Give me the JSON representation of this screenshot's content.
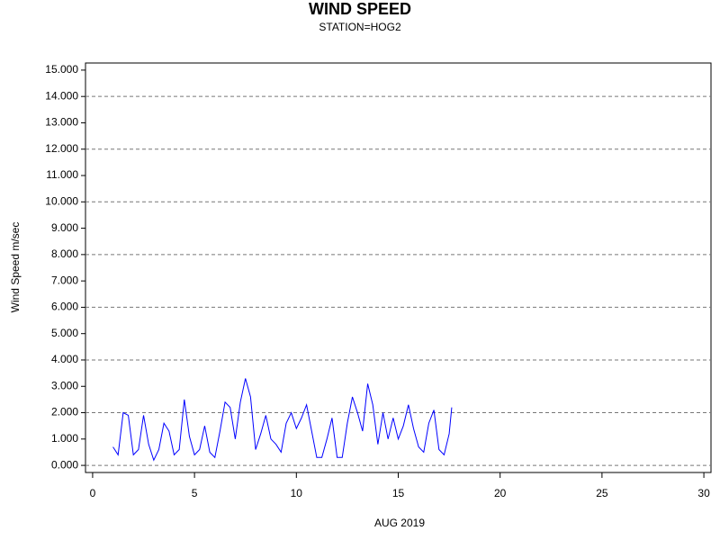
{
  "chart_data": {
    "type": "line",
    "title": "WIND SPEED",
    "subtitle": "STATION=HOG2",
    "x_label": "AUG 2019",
    "y_label": "Wind Speed m/sec",
    "x": [
      1.0,
      1.25,
      1.5,
      1.75,
      2.0,
      2.25,
      2.5,
      2.75,
      3.0,
      3.25,
      3.5,
      3.75,
      4.0,
      4.25,
      4.5,
      4.75,
      5.0,
      5.25,
      5.5,
      5.75,
      6.0,
      6.25,
      6.5,
      6.75,
      7.0,
      7.25,
      7.5,
      7.75,
      8.0,
      8.25,
      8.5,
      8.75,
      9.0,
      9.25,
      9.5,
      9.75,
      10.0,
      10.25,
      10.5,
      10.75,
      11.0,
      11.25,
      11.5,
      11.75,
      12.0,
      12.25,
      12.5,
      12.75,
      13.0,
      13.25,
      13.5,
      13.75,
      14.0,
      14.25,
      14.5,
      14.75,
      15.0,
      15.25,
      15.5,
      15.75,
      16.0,
      16.25,
      16.5,
      16.75,
      17.0,
      17.25,
      17.5,
      17.625
    ],
    "series": [
      {
        "name": "Wind Speed",
        "color": "#0000ff",
        "values": [
          0.7,
          0.4,
          2.0,
          1.9,
          0.4,
          0.6,
          1.9,
          0.8,
          0.2,
          0.6,
          1.6,
          1.3,
          0.4,
          0.6,
          2.5,
          1.1,
          0.4,
          0.6,
          1.5,
          0.5,
          0.3,
          1.3,
          2.4,
          2.2,
          1.0,
          2.4,
          3.3,
          2.6,
          0.6,
          1.2,
          1.9,
          1.0,
          0.8,
          0.5,
          1.6,
          2.0,
          1.4,
          1.8,
          2.3,
          1.3,
          0.3,
          0.3,
          1.0,
          1.8,
          0.3,
          0.3,
          1.6,
          2.6,
          2.0,
          1.3,
          3.1,
          2.3,
          0.8,
          2.0,
          1.0,
          1.8,
          1.0,
          1.5,
          2.3,
          1.4,
          0.7,
          0.5,
          1.6,
          2.1,
          0.6,
          0.4,
          1.2,
          2.2
        ]
      }
    ],
    "xlim": [
      -0.35,
      30.35
    ],
    "ylim": [
      -0.27,
      15.27
    ],
    "xticks": [
      0,
      5,
      10,
      15,
      20,
      25,
      30
    ],
    "yticks": [
      {
        "value": 0,
        "label": "0.000"
      },
      {
        "value": 1,
        "label": "1.000"
      },
      {
        "value": 2,
        "label": "2.000"
      },
      {
        "value": 3,
        "label": "3.000"
      },
      {
        "value": 4,
        "label": "4.000"
      },
      {
        "value": 5,
        "label": "5.000"
      },
      {
        "value": 6,
        "label": "6.000"
      },
      {
        "value": 7,
        "label": "7.000"
      },
      {
        "value": 8,
        "label": "8.000"
      },
      {
        "value": 9,
        "label": "9.000"
      },
      {
        "value": 10,
        "label": "10.000"
      },
      {
        "value": 11,
        "label": "11.000"
      },
      {
        "value": 12,
        "label": "12.000"
      },
      {
        "value": 13,
        "label": "13.000"
      },
      {
        "value": 14,
        "label": "14.000"
      },
      {
        "value": 15,
        "label": "15.000"
      }
    ],
    "grid_ticks": [
      0,
      2,
      4,
      6,
      8,
      10,
      12,
      14
    ]
  }
}
